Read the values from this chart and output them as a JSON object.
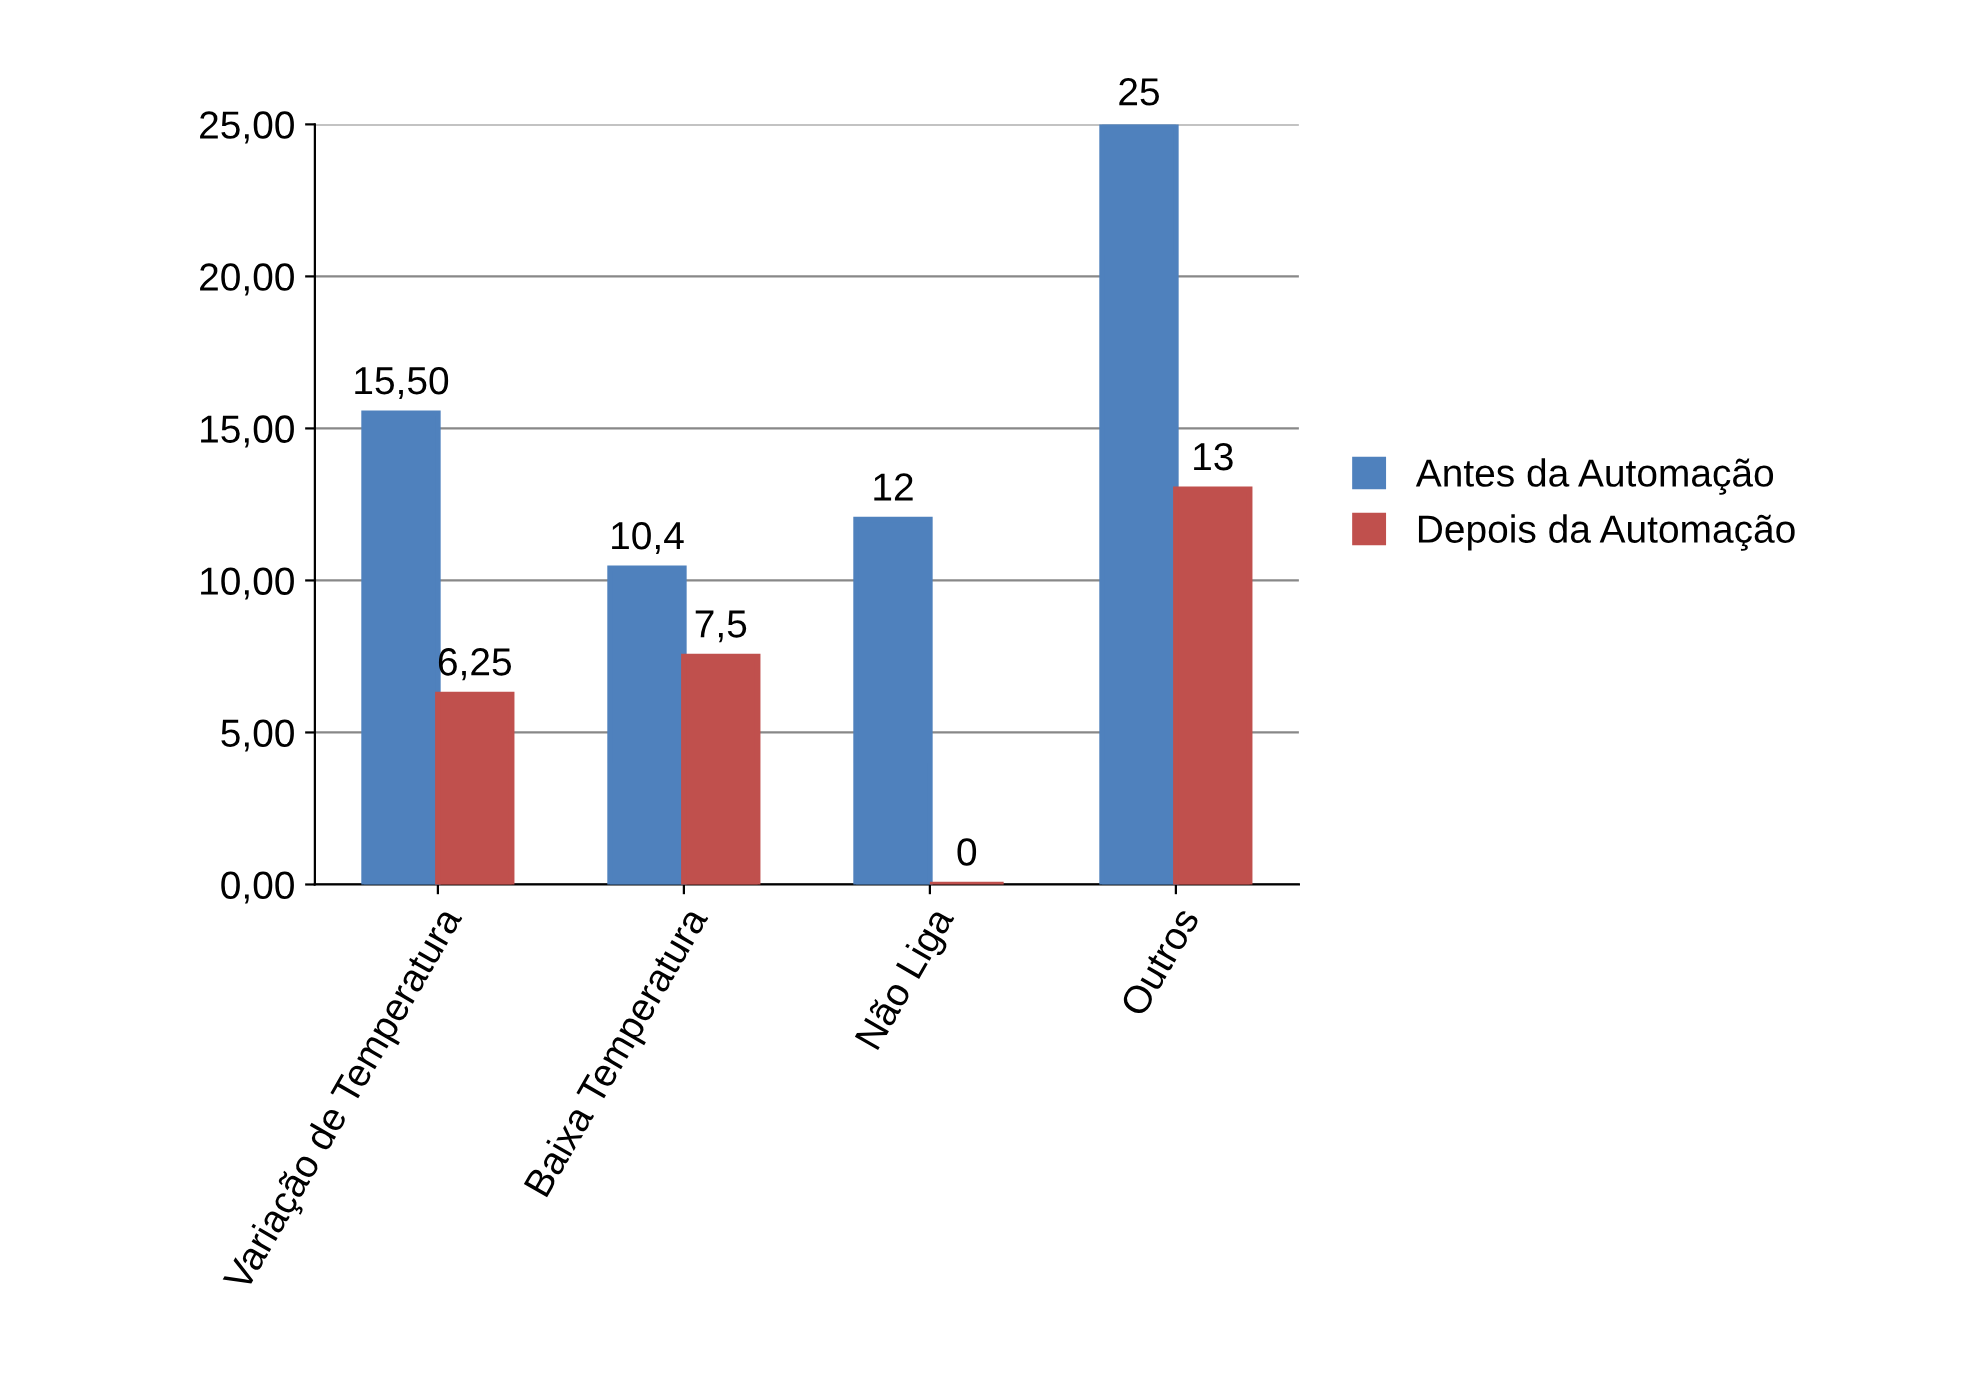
{
  "chart_data": {
    "type": "bar",
    "categories": [
      "Variação de Temperatura",
      "Baixa Temperatura",
      "Não Liga",
      "Outros"
    ],
    "series": [
      {
        "name": "Antes da Automação",
        "color": "#4f81bd",
        "values": [
          15.5,
          10.4,
          12,
          25
        ],
        "value_labels": [
          "15,50",
          "10,4",
          "12",
          "25"
        ]
      },
      {
        "name": "Depois da Automação",
        "color": "#c0504d",
        "values": [
          6.25,
          7.5,
          0,
          13
        ],
        "value_labels": [
          "6,25",
          "7,5",
          "0",
          "13"
        ]
      }
    ],
    "ylim": [
      0,
      25
    ],
    "yticks": [
      {
        "value": 0,
        "label": "0,00"
      },
      {
        "value": 5,
        "label": "5,00"
      },
      {
        "value": 10,
        "label": "10,00"
      },
      {
        "value": 15,
        "label": "15,00"
      },
      {
        "value": 20,
        "label": "20,00"
      },
      {
        "value": 25,
        "label": "25,00"
      }
    ],
    "grid": "y",
    "legend": "right"
  }
}
